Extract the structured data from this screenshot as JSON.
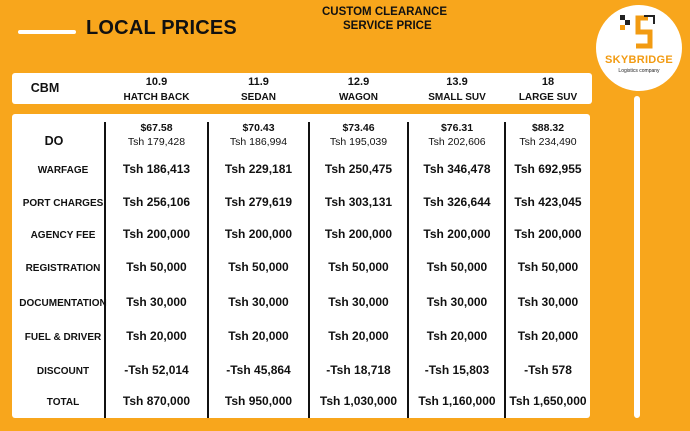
{
  "title": "LOCAL PRICES",
  "subtitle": [
    "CUSTOM CLEARANCE",
    "SERVICE PRICE"
  ],
  "logo": {
    "brand": "SKYBRIDGE",
    "tagline": "Logistics company",
    "icon": "skybridge-s-logo-icon"
  },
  "header": {
    "label": "CBM",
    "columns": [
      {
        "cbm": "10.9",
        "name": "HATCH BACK"
      },
      {
        "cbm": "11.9",
        "name": "SEDAN"
      },
      {
        "cbm": "12.9",
        "name": "WAGON"
      },
      {
        "cbm": "13.9",
        "name": "SMALL SUV"
      },
      {
        "cbm": "18",
        "name": "LARGE SUV"
      }
    ]
  },
  "do_row": {
    "label": "DO",
    "usd": [
      "$67.58",
      "$70.43",
      "$73.46",
      "$76.31",
      "$88.32"
    ],
    "tsh": [
      "Tsh 179,428",
      "Tsh 186,994",
      "Tsh 195,039",
      "Tsh 202,606",
      "Tsh 234,490"
    ]
  },
  "rows": [
    {
      "label": "WARFAGE",
      "values": [
        "Tsh 186,413",
        "Tsh 229,181",
        "Tsh 250,475",
        "Tsh 346,478",
        "Tsh 692,955"
      ]
    },
    {
      "label": "PORT CHARGES",
      "values": [
        "Tsh 256,106",
        "Tsh 279,619",
        "Tsh 303,131",
        "Tsh 326,644",
        "Tsh 423,045"
      ]
    },
    {
      "label": "AGENCY FEE",
      "values": [
        "Tsh 200,000",
        "Tsh 200,000",
        "Tsh 200,000",
        "Tsh 200,000",
        "Tsh 200,000"
      ]
    },
    {
      "label": "REGISTRATION",
      "values": [
        "Tsh 50,000",
        "Tsh 50,000",
        "Tsh 50,000",
        "Tsh 50,000",
        "Tsh 50,000"
      ]
    },
    {
      "label": "DOCUMENTATION",
      "values": [
        "Tsh 30,000",
        "Tsh 30,000",
        "Tsh 30,000",
        "Tsh 30,000",
        "Tsh 30,000"
      ]
    },
    {
      "label": "FUEL & DRIVER",
      "values": [
        "Tsh 20,000",
        "Tsh 20,000",
        "Tsh 20,000",
        "Tsh 20,000",
        "Tsh 20,000"
      ]
    },
    {
      "label": "DISCOUNT",
      "values": [
        "-Tsh 52,014",
        "-Tsh 45,864",
        "-Tsh 18,718",
        "-Tsh 15,803",
        "-Tsh 578"
      ]
    },
    {
      "label": "TOTAL",
      "values": [
        "Tsh 870,000",
        "Tsh 950,000",
        "Tsh 1,030,000",
        "Tsh 1,160,000",
        "Tsh 1,650,000"
      ]
    }
  ],
  "colors": {
    "background": "#F8A61C",
    "card": "#FFFFFF",
    "text": "#111111",
    "brand": "#F29B12"
  }
}
